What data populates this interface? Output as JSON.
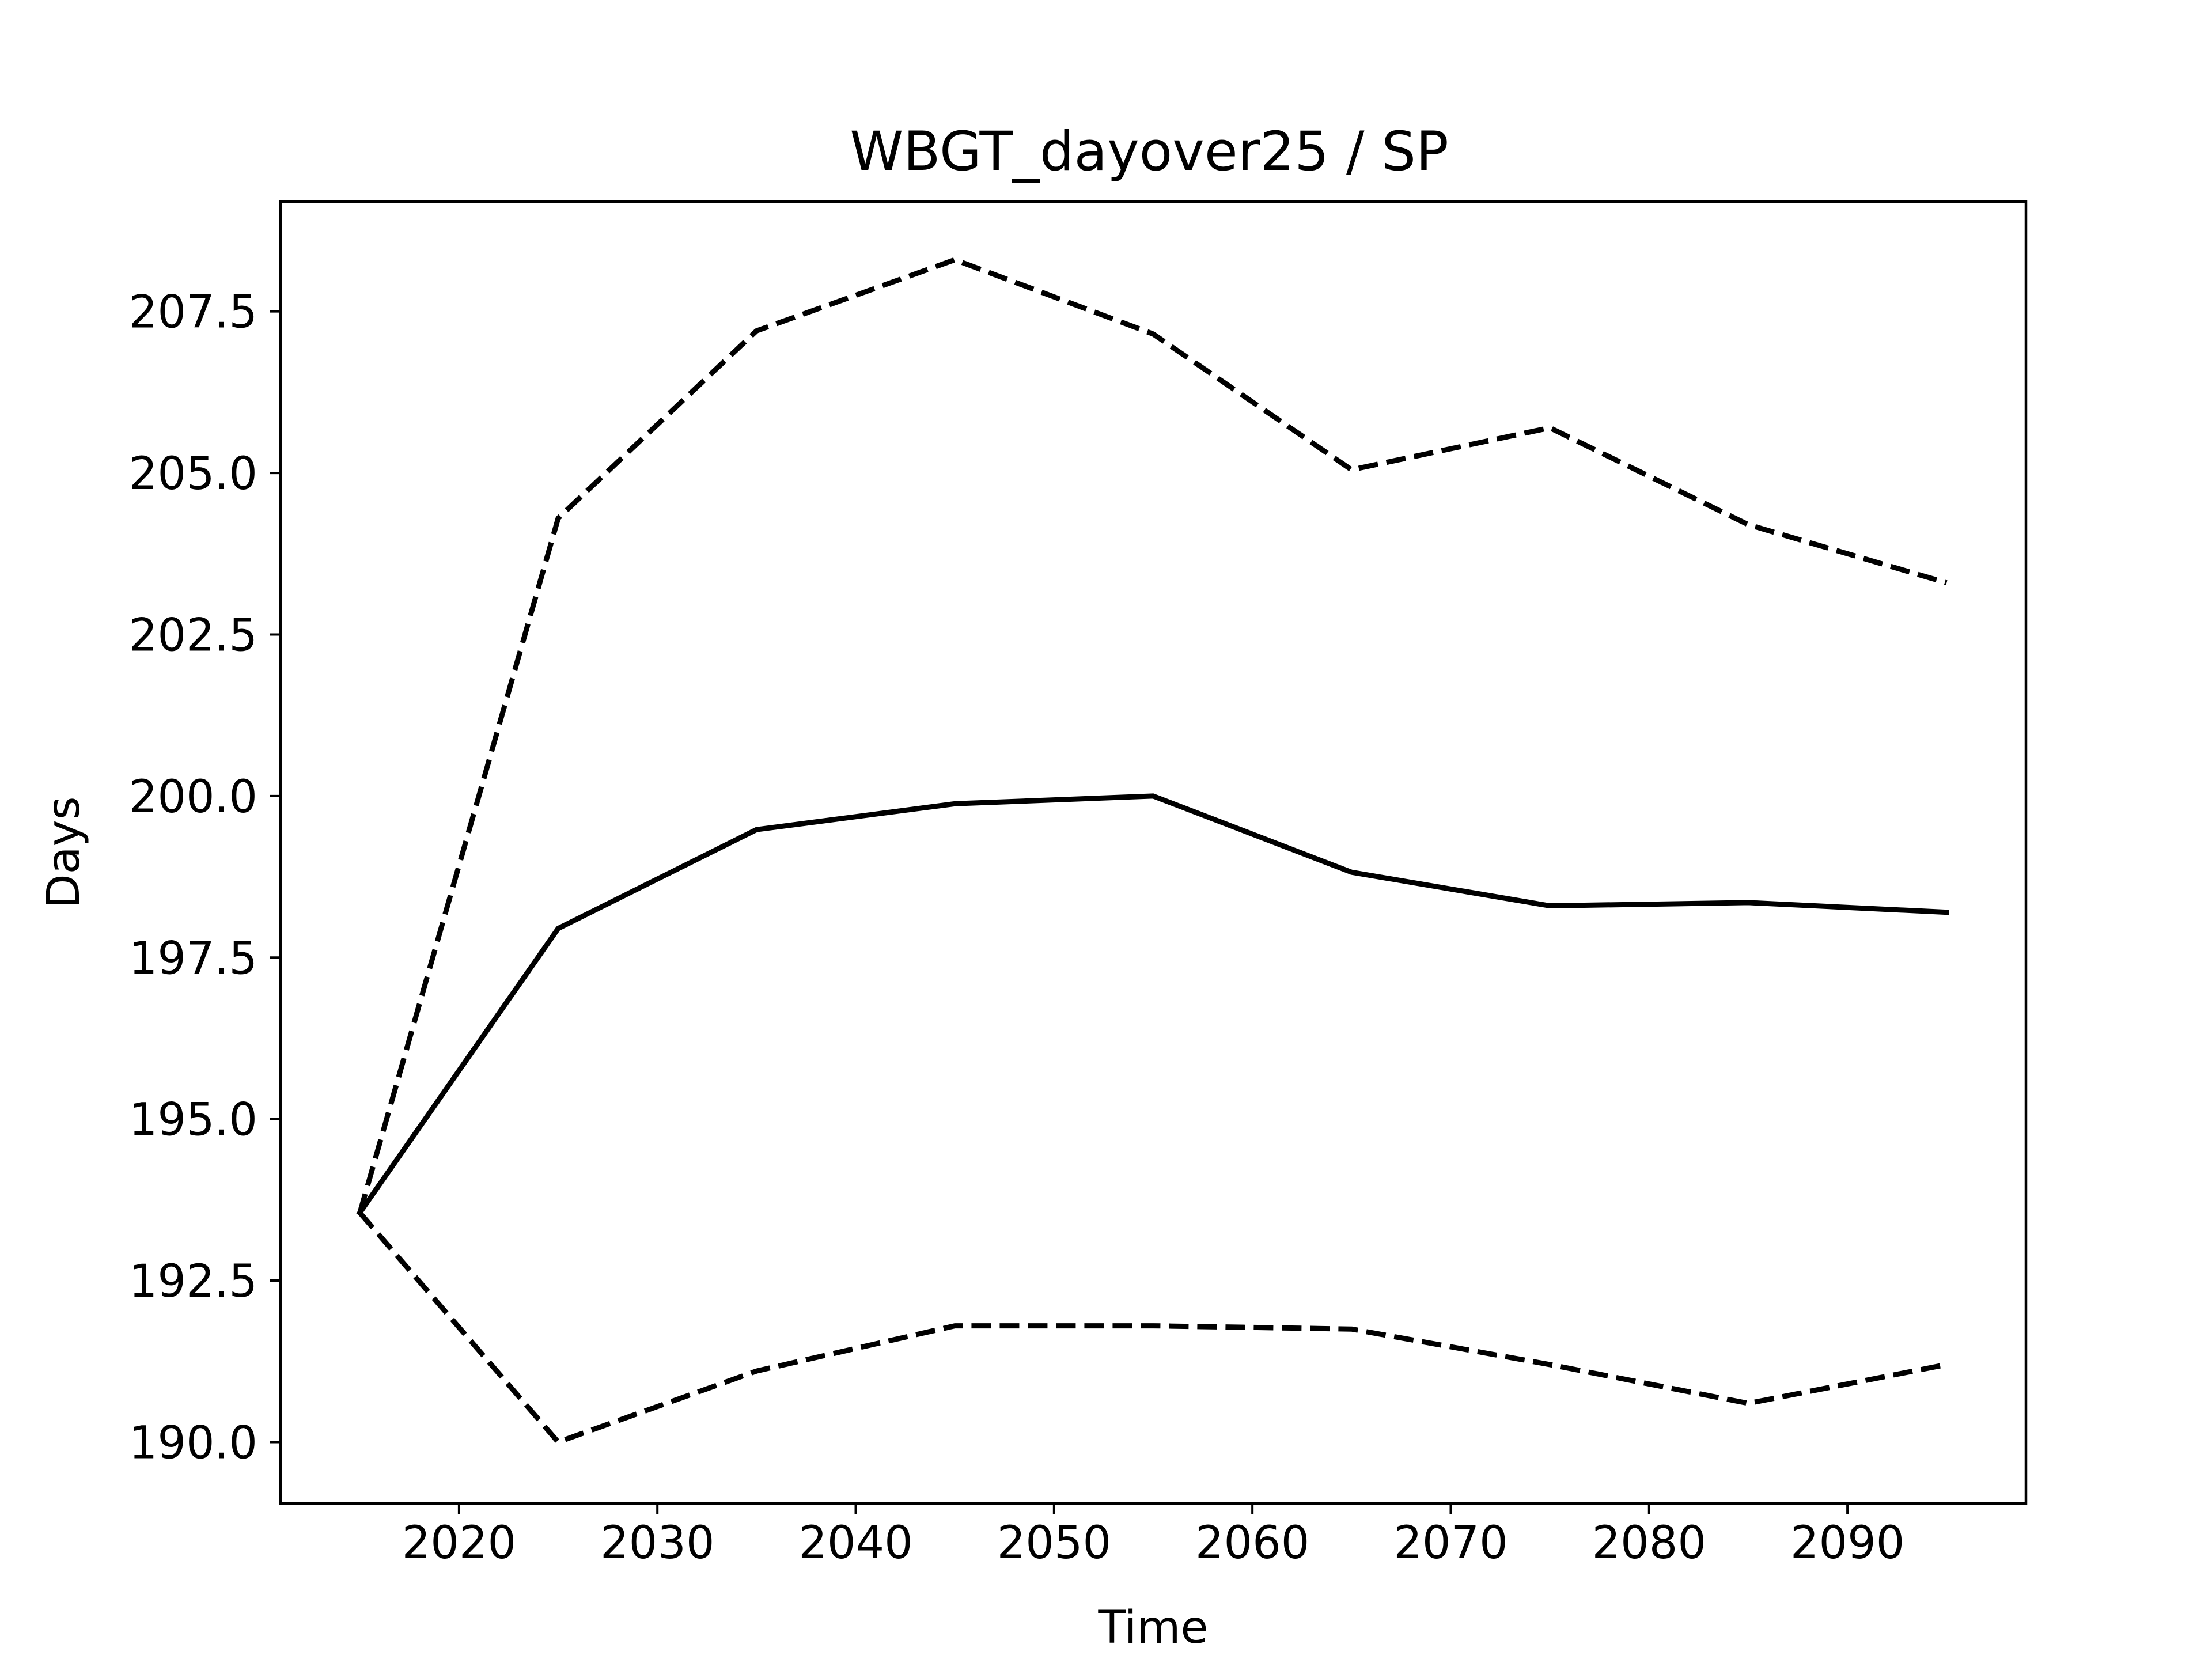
{
  "chart_data": {
    "type": "line",
    "title": "WBGT_dayover25 / SP",
    "xlabel": "Time",
    "ylabel": "Days",
    "x": [
      2015,
      2025,
      2035,
      2045,
      2055,
      2065,
      2075,
      2085,
      2095
    ],
    "xlim": [
      2011,
      2099
    ],
    "ylim": [
      189.05,
      209.2
    ],
    "xticks": [
      2020,
      2030,
      2040,
      2050,
      2060,
      2070,
      2080,
      2090
    ],
    "yticks": [
      190.0,
      192.5,
      195.0,
      197.5,
      200.0,
      202.5,
      205.0,
      207.5
    ],
    "xtick_labels": [
      "2020",
      "2030",
      "2040",
      "2050",
      "2060",
      "2070",
      "2080",
      "2090"
    ],
    "ytick_labels": [
      "190.0",
      "192.5",
      "195.0",
      "197.5",
      "200.0",
      "202.5",
      "205.0",
      "207.5"
    ],
    "grid": false,
    "line_color": "#000000",
    "series": [
      {
        "style": "solid",
        "values": [
          193.55,
          197.95,
          199.48,
          199.88,
          200.0,
          198.82,
          198.3,
          198.35,
          198.2
        ]
      },
      {
        "style": "dashed",
        "values": [
          193.55,
          204.3,
          207.2,
          208.3,
          207.15,
          205.05,
          205.7,
          204.2,
          203.3
        ]
      },
      {
        "style": "dashed",
        "values": [
          193.55,
          190.0,
          191.1,
          191.8,
          191.8,
          191.75,
          191.2,
          190.6,
          191.2
        ]
      }
    ]
  }
}
